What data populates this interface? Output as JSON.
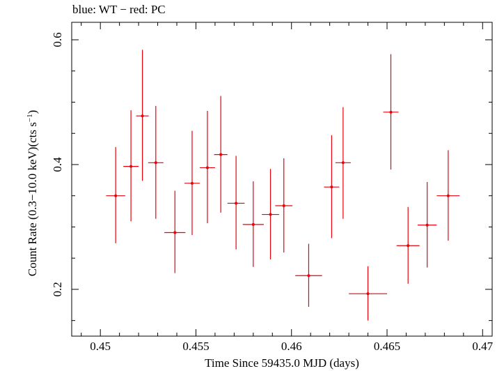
{
  "header": {
    "caption": "blue: WT − red: PC"
  },
  "chart_data": {
    "type": "scatter",
    "title": "blue: WT − red: PC",
    "xlabel": "Time Since 59435.0 MJD (days)",
    "ylabel": {
      "main": "Count Rate (0.3−10.0 keV)(cts s",
      "sup": "−1",
      "close": ")"
    },
    "xlim": [
      0.4485,
      0.4705
    ],
    "ylim": [
      0.125,
      0.628
    ],
    "x_ticks": [
      {
        "value": 0.45,
        "label": "0.45"
      },
      {
        "value": 0.455,
        "label": "0.455"
      },
      {
        "value": 0.46,
        "label": "0.46"
      },
      {
        "value": 0.465,
        "label": "0.465"
      },
      {
        "value": 0.47,
        "label": "0.47"
      }
    ],
    "y_ticks": [
      {
        "value": 0.2,
        "label": "0.2"
      },
      {
        "value": 0.4,
        "label": "0.4"
      },
      {
        "value": 0.6,
        "label": "0.6"
      }
    ],
    "colors": {
      "red": "#e8000b",
      "axis": "#000000"
    },
    "series": [
      {
        "name": "PC",
        "color": "#e8000b",
        "points": [
          {
            "x": 0.4508,
            "y": 0.35,
            "xerr": 0.0005,
            "yerr_low": 0.076,
            "yerr_high": 0.078
          },
          {
            "x": 0.4516,
            "y": 0.397,
            "xerr": 0.0004,
            "yerr_low": 0.088,
            "yerr_high": 0.09
          },
          {
            "x": 0.4522,
            "y": 0.478,
            "xerr": 0.00033,
            "yerr_low": 0.104,
            "yerr_high": 0.106
          },
          {
            "x": 0.4529,
            "y": 0.403,
            "xerr": 0.0004,
            "yerr_low": 0.09,
            "yerr_high": 0.091
          },
          {
            "x": 0.4539,
            "y": 0.291,
            "xerr": 0.00055,
            "yerr_low": 0.065,
            "yerr_high": 0.067
          },
          {
            "x": 0.4548,
            "y": 0.37,
            "xerr": 0.0004,
            "yerr_low": 0.083,
            "yerr_high": 0.084
          },
          {
            "x": 0.4556,
            "y": 0.395,
            "xerr": 0.0004,
            "yerr_low": 0.089,
            "yerr_high": 0.091
          },
          {
            "x": 0.4563,
            "y": 0.416,
            "xerr": 0.00035,
            "yerr_low": 0.093,
            "yerr_high": 0.094
          },
          {
            "x": 0.4571,
            "y": 0.338,
            "xerr": 0.00045,
            "yerr_low": 0.074,
            "yerr_high": 0.076
          },
          {
            "x": 0.458,
            "y": 0.304,
            "xerr": 0.00055,
            "yerr_low": 0.068,
            "yerr_high": 0.069
          },
          {
            "x": 0.4589,
            "y": 0.32,
            "xerr": 0.00045,
            "yerr_low": 0.072,
            "yerr_high": 0.073
          },
          {
            "x": 0.4596,
            "y": 0.334,
            "xerr": 0.00045,
            "yerr_low": 0.075,
            "yerr_high": 0.076
          },
          {
            "x": 0.4609,
            "y": 0.222,
            "xerr": 0.0007,
            "yerr_low": 0.05,
            "yerr_high": 0.051
          },
          {
            "x": 0.4621,
            "y": 0.364,
            "xerr": 0.0004,
            "yerr_low": 0.082,
            "yerr_high": 0.083
          },
          {
            "x": 0.4627,
            "y": 0.403,
            "xerr": 0.0004,
            "yerr_low": 0.09,
            "yerr_high": 0.089
          },
          {
            "x": 0.464,
            "y": 0.193,
            "xerr": 0.001,
            "yerr_low": 0.043,
            "yerr_high": 0.044
          },
          {
            "x": 0.4652,
            "y": 0.484,
            "xerr": 0.0004,
            "yerr_low": 0.092,
            "yerr_high": 0.093
          },
          {
            "x": 0.4661,
            "y": 0.27,
            "xerr": 0.0006,
            "yerr_low": 0.061,
            "yerr_high": 0.062
          },
          {
            "x": 0.4671,
            "y": 0.303,
            "xerr": 0.0005,
            "yerr_low": 0.068,
            "yerr_high": 0.069
          },
          {
            "x": 0.4682,
            "y": 0.35,
            "xerr": 0.0006,
            "yerr_low": 0.072,
            "yerr_high": 0.073
          }
        ]
      }
    ]
  }
}
